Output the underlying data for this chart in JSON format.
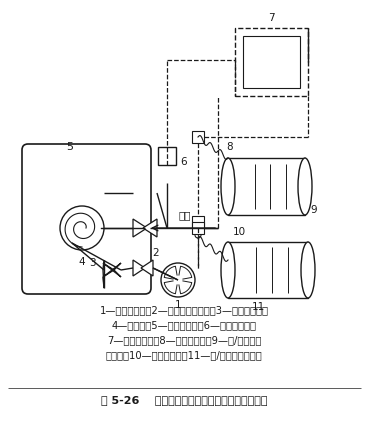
{
  "title": "图 5-26    直燃型机组制冷量自动控制原理示意图",
  "legend_lines": [
    "1—燃烧器风机；2—空气流量调节阀；3—燃气调节阀；",
    "4—燃烧器；5—高压发生器；6—调节电动机；",
    "7—温度控制器；8—温度传感器；9—冷/热水出口",
    "连接管；10—温度传感器；11—冷/热水进口连接管"
  ],
  "background_color": "#ffffff",
  "line_color": "#1a1a1a"
}
